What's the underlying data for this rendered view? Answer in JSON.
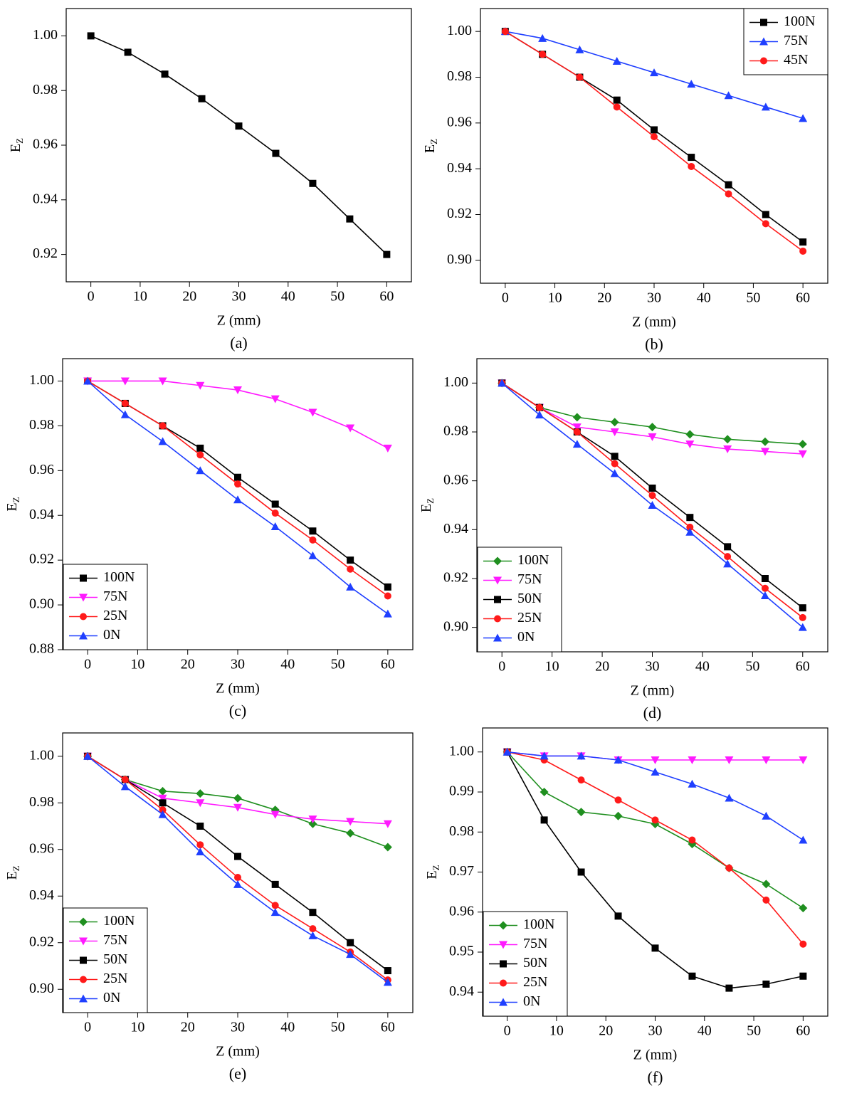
{
  "chart_data": [
    {
      "type": "line",
      "caption": "(a)",
      "x_label": "Z (mm)",
      "y_label": "E",
      "y_label_sub": "Z",
      "x": [
        0,
        7.5,
        15,
        22.5,
        30,
        37.5,
        45,
        52.5,
        60
      ],
      "values": [
        1.0,
        0.994,
        0.986,
        0.977,
        0.967,
        0.957,
        0.946,
        0.933,
        0.92
      ],
      "color": "#000000",
      "marker": "square",
      "xlim": [
        -5,
        65
      ],
      "xticks": [
        0,
        10,
        20,
        30,
        40,
        50,
        60
      ],
      "ylim": [
        0.91,
        1.01
      ],
      "yticks": [
        0.92,
        0.94,
        0.96,
        0.98,
        {
          "value": 1.0,
          "label": "1.00"
        }
      ]
    },
    {
      "type": "line",
      "caption": "(b)",
      "x_label": "Z (mm)",
      "y_label": "E",
      "y_label_sub": "Z",
      "legend": "upper right",
      "x": [
        0,
        7.5,
        15,
        22.5,
        30,
        37.5,
        45,
        52.5,
        60
      ],
      "series": [
        {
          "name": "100N",
          "color": "#000000",
          "marker": "square",
          "values": [
            1.0,
            0.99,
            0.98,
            0.97,
            0.957,
            0.945,
            0.933,
            0.92,
            0.908
          ]
        },
        {
          "name": "75N",
          "color": "#1f3fff",
          "marker": "triangle-up",
          "values": [
            1.0,
            0.997,
            0.992,
            0.987,
            0.982,
            0.977,
            0.972,
            0.967,
            0.962
          ]
        },
        {
          "name": "45N",
          "color": "#ff1a1a",
          "marker": "circle",
          "values": [
            1.0,
            0.99,
            0.98,
            0.967,
            0.954,
            0.941,
            0.929,
            0.916,
            0.904
          ]
        }
      ],
      "xlim": [
        -5,
        65
      ],
      "xticks": [
        0,
        10,
        20,
        30,
        40,
        50,
        60
      ],
      "ylim": [
        0.89,
        1.01
      ],
      "yticks": [
        {
          "value": 0.9,
          "label": "0.90"
        },
        0.92,
        0.94,
        0.96,
        0.98,
        {
          "value": 1.0,
          "label": "1.00"
        }
      ]
    },
    {
      "type": "line",
      "caption": "(c)",
      "x_label": "Z (mm)",
      "y_label": "E",
      "y_label_sub": "Z",
      "legend": "lower left",
      "x": [
        0,
        7.5,
        15,
        22.5,
        30,
        37.5,
        45,
        52.5,
        60
      ],
      "series": [
        {
          "name": "100N",
          "color": "#000000",
          "marker": "square",
          "values": [
            1.0,
            0.99,
            0.98,
            0.97,
            0.957,
            0.945,
            0.933,
            0.92,
            0.908
          ]
        },
        {
          "name": "75N",
          "color": "#ff1aff",
          "marker": "triangle-down",
          "values": [
            1.0,
            1.0,
            1.0,
            0.998,
            0.996,
            0.992,
            0.986,
            0.979,
            0.97
          ]
        },
        {
          "name": "25N",
          "color": "#ff1a1a",
          "marker": "circle",
          "values": [
            1.0,
            0.99,
            0.98,
            0.967,
            0.954,
            0.941,
            0.929,
            0.916,
            0.904
          ]
        },
        {
          "name": "0N",
          "color": "#1f3fff",
          "marker": "triangle-up",
          "values": [
            1.0,
            0.985,
            0.973,
            0.96,
            0.947,
            0.935,
            0.922,
            0.908,
            0.896
          ]
        }
      ],
      "xlim": [
        -5,
        65
      ],
      "xticks": [
        0,
        10,
        20,
        30,
        40,
        50,
        60
      ],
      "ylim": [
        0.88,
        1.01
      ],
      "yticks": [
        0.88,
        {
          "value": 0.9,
          "label": "0.90"
        },
        0.92,
        0.94,
        0.96,
        0.98,
        {
          "value": 1.0,
          "label": "1.00"
        }
      ]
    },
    {
      "type": "line",
      "caption": "(d)",
      "x_label": "Z (mm)",
      "y_label": "E",
      "y_label_sub": "Z",
      "legend": "lower left",
      "x": [
        0,
        7.5,
        15,
        22.5,
        30,
        37.5,
        45,
        52.5,
        60
      ],
      "series": [
        {
          "name": "100N",
          "color": "#1f8f1f",
          "marker": "diamond",
          "values": [
            1.0,
            0.99,
            0.986,
            0.984,
            0.982,
            0.979,
            0.977,
            0.976,
            0.975
          ]
        },
        {
          "name": "75N",
          "color": "#ff1aff",
          "marker": "triangle-down",
          "values": [
            1.0,
            0.99,
            0.982,
            0.98,
            0.978,
            0.975,
            0.973,
            0.972,
            0.971
          ]
        },
        {
          "name": "50N",
          "color": "#000000",
          "marker": "square",
          "values": [
            1.0,
            0.99,
            0.98,
            0.97,
            0.957,
            0.945,
            0.933,
            0.92,
            0.908
          ]
        },
        {
          "name": "25N",
          "color": "#ff1a1a",
          "marker": "circle",
          "values": [
            1.0,
            0.99,
            0.98,
            0.967,
            0.954,
            0.941,
            0.929,
            0.916,
            0.904
          ]
        },
        {
          "name": "0N",
          "color": "#1f3fff",
          "marker": "triangle-up",
          "values": [
            1.0,
            0.987,
            0.975,
            0.963,
            0.95,
            0.939,
            0.926,
            0.913,
            0.9
          ]
        }
      ],
      "xlim": [
        -5,
        65
      ],
      "xticks": [
        0,
        10,
        20,
        30,
        40,
        50,
        60
      ],
      "ylim": [
        0.89,
        1.01
      ],
      "yticks": [
        {
          "value": 0.9,
          "label": "0.90"
        },
        0.92,
        0.94,
        0.96,
        0.98,
        {
          "value": 1.0,
          "label": "1.00"
        }
      ]
    },
    {
      "type": "line",
      "caption": "(e)",
      "x_label": "Z (mm)",
      "y_label": "E",
      "y_label_sub": "Z",
      "legend": "lower left",
      "x": [
        0,
        7.5,
        15,
        22.5,
        30,
        37.5,
        45,
        52.5,
        60
      ],
      "series": [
        {
          "name": "100N",
          "color": "#1f8f1f",
          "marker": "diamond",
          "values": [
            1.0,
            0.99,
            0.985,
            0.984,
            0.982,
            0.977,
            0.971,
            0.967,
            0.961
          ]
        },
        {
          "name": "75N",
          "color": "#ff1aff",
          "marker": "triangle-down",
          "values": [
            1.0,
            0.99,
            0.982,
            0.98,
            0.978,
            0.975,
            0.973,
            0.972,
            0.971
          ]
        },
        {
          "name": "50N",
          "color": "#000000",
          "marker": "square",
          "values": [
            1.0,
            0.99,
            0.98,
            0.97,
            0.957,
            0.945,
            0.933,
            0.92,
            0.908
          ]
        },
        {
          "name": "25N",
          "color": "#ff1a1a",
          "marker": "circle",
          "values": [
            1.0,
            0.99,
            0.977,
            0.962,
            0.948,
            0.936,
            0.926,
            0.916,
            0.904
          ]
        },
        {
          "name": "0N",
          "color": "#1f3fff",
          "marker": "triangle-up",
          "values": [
            1.0,
            0.987,
            0.975,
            0.959,
            0.945,
            0.933,
            0.923,
            0.915,
            0.903
          ]
        }
      ],
      "xlim": [
        -5,
        65
      ],
      "xticks": [
        0,
        10,
        20,
        30,
        40,
        50,
        60
      ],
      "ylim": [
        0.89,
        1.01
      ],
      "yticks": [
        {
          "value": 0.9,
          "label": "0.90"
        },
        0.92,
        0.94,
        0.96,
        0.98,
        {
          "value": 1.0,
          "label": "1.00"
        }
      ]
    },
    {
      "type": "line",
      "caption": "(f)",
      "x_label": "Z (mm)",
      "y_label": "E",
      "y_label_sub": "Z",
      "legend": "lower left",
      "x": [
        0,
        7.5,
        15,
        22.5,
        30,
        37.5,
        45,
        52.5,
        60
      ],
      "series": [
        {
          "name": "100N",
          "color": "#1f8f1f",
          "marker": "diamond",
          "values": [
            1.0,
            0.99,
            0.985,
            0.984,
            0.982,
            0.977,
            0.971,
            0.967,
            0.961
          ]
        },
        {
          "name": "75N",
          "color": "#ff1aff",
          "marker": "triangle-down",
          "values": [
            1.0,
            0.999,
            0.999,
            0.998,
            0.998,
            0.998,
            0.998,
            0.998,
            0.998
          ]
        },
        {
          "name": "50N",
          "color": "#000000",
          "marker": "square",
          "values": [
            1.0,
            0.983,
            0.97,
            0.959,
            0.951,
            0.944,
            0.941,
            0.942,
            0.944
          ]
        },
        {
          "name": "25N",
          "color": "#ff1a1a",
          "marker": "circle",
          "values": [
            1.0,
            0.998,
            0.993,
            0.988,
            0.983,
            0.978,
            0.971,
            0.963,
            0.952
          ]
        },
        {
          "name": "0N",
          "color": "#1f3fff",
          "marker": "triangle-up",
          "values": [
            1.0,
            0.999,
            0.999,
            0.998,
            0.995,
            0.992,
            0.9885,
            0.984,
            0.978
          ]
        }
      ],
      "xlim": [
        -5,
        65
      ],
      "xticks": [
        0,
        10,
        20,
        30,
        40,
        50,
        60
      ],
      "ylim": [
        0.934,
        1.006
      ],
      "yticks": [
        0.94,
        0.95,
        0.96,
        0.97,
        0.98,
        0.99,
        {
          "value": 1.0,
          "label": "1.00"
        }
      ]
    }
  ]
}
